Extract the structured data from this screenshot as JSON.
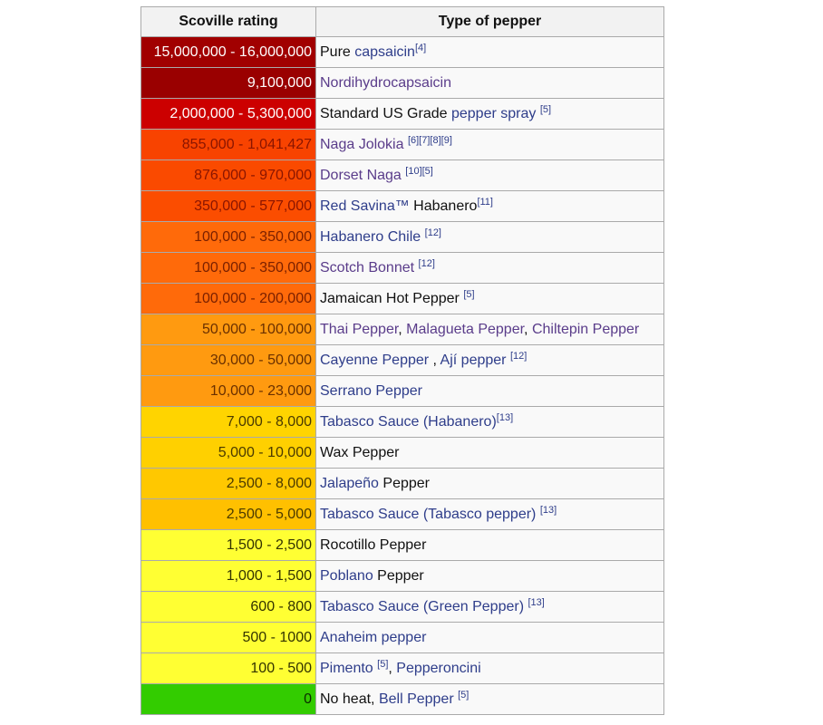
{
  "table": {
    "headers": [
      "Scoville rating",
      "Type of pepper"
    ],
    "rows": [
      {
        "rating": "15,000,000 - 16,000,000",
        "bg": "#a10000",
        "fg": "#ffffff",
        "type": [
          {
            "t": "Pure "
          },
          {
            "t": "capsaicin",
            "link": true
          },
          {
            "t": "[4]",
            "sup": true
          }
        ]
      },
      {
        "rating": "9,100,000",
        "bg": "#9a0000",
        "fg": "#ffffff",
        "type": [
          {
            "t": "Nordihydrocapsaicin",
            "link": true,
            "visited": true
          }
        ]
      },
      {
        "rating": "2,000,000 - 5,300,000",
        "bg": "#cc0000",
        "fg": "#ffffff",
        "type": [
          {
            "t": "Standard US Grade "
          },
          {
            "t": "pepper spray",
            "link": true
          },
          {
            "t": " "
          },
          {
            "t": "[5]",
            "sup": true
          }
        ]
      },
      {
        "rating": "855,000 - 1,041,427",
        "bg": "#f84300",
        "fg": "#8a1500",
        "type": [
          {
            "t": "Naga Jolokia",
            "link": true,
            "visited": true
          },
          {
            "t": " "
          },
          {
            "t": "[6][7][8][9]",
            "sup": true
          }
        ]
      },
      {
        "rating": "876,000 - 970,000",
        "bg": "#fa4a00",
        "fg": "#8a1500",
        "type": [
          {
            "t": "Dorset Naga",
            "link": true,
            "visited": true
          },
          {
            "t": " "
          },
          {
            "t": "[10][5]",
            "sup": true
          }
        ]
      },
      {
        "rating": "350,000 - 577,000",
        "bg": "#fb4d00",
        "fg": "#8a1500",
        "type": [
          {
            "t": "Red Savina™",
            "link": true
          },
          {
            "t": " Habanero"
          },
          {
            "t": "[11]",
            "sup": true
          }
        ]
      },
      {
        "rating": "100,000 - 350,000",
        "bg": "#ff6a0a",
        "fg": "#7a2000",
        "type": [
          {
            "t": "Habanero Chile",
            "link": true
          },
          {
            "t": " "
          },
          {
            "t": "[12]",
            "sup": true
          }
        ]
      },
      {
        "rating": "100,000 - 350,000",
        "bg": "#ff6a0a",
        "fg": "#7a2000",
        "type": [
          {
            "t": "Scotch Bonnet",
            "link": true,
            "visited": true
          },
          {
            "t": " "
          },
          {
            "t": "[12]",
            "sup": true
          }
        ]
      },
      {
        "rating": "100,000 - 200,000",
        "bg": "#ff6a0a",
        "fg": "#7a2000",
        "type": [
          {
            "t": "Jamaican Hot Pepper "
          },
          {
            "t": "[5]",
            "sup": true
          }
        ]
      },
      {
        "rating": "50,000 - 100,000",
        "bg": "#ff9a10",
        "fg": "#6a3000",
        "type": [
          {
            "t": "Thai Pepper",
            "link": true,
            "visited": true
          },
          {
            "t": ", "
          },
          {
            "t": "Malagueta Pepper",
            "link": true,
            "visited": true
          },
          {
            "t": ", "
          },
          {
            "t": "Chiltepin Pepper",
            "link": true,
            "visited": true
          }
        ]
      },
      {
        "rating": "30,000 - 50,000",
        "bg": "#ff9a10",
        "fg": "#6a3000",
        "type": [
          {
            "t": "Cayenne Pepper",
            "link": true
          },
          {
            "t": " , "
          },
          {
            "t": "Ají pepper",
            "link": true
          },
          {
            "t": " "
          },
          {
            "t": "[12]",
            "sup": true
          }
        ]
      },
      {
        "rating": "10,000 - 23,000",
        "bg": "#ff9a10",
        "fg": "#6a3000",
        "type": [
          {
            "t": "Serrano Pepper",
            "link": true
          }
        ]
      },
      {
        "rating": "7,000 - 8,000",
        "bg": "#ffd400",
        "fg": "#4a3a00",
        "type": [
          {
            "t": "Tabasco Sauce (Habanero)",
            "link": true
          },
          {
            "t": "[13]",
            "sup": true
          }
        ]
      },
      {
        "rating": "5,000 - 10,000",
        "bg": "#ffd000",
        "fg": "#4a3a00",
        "type": [
          {
            "t": "Wax Pepper"
          }
        ]
      },
      {
        "rating": "2,500 - 8,000",
        "bg": "#ffc800",
        "fg": "#4a3a00",
        "type": [
          {
            "t": "Jalapeño",
            "link": true
          },
          {
            "t": " Pepper"
          }
        ]
      },
      {
        "rating": "2,500 - 5,000",
        "bg": "#ffc000",
        "fg": "#4a3a00",
        "type": [
          {
            "t": "Tabasco Sauce (Tabasco pepper)",
            "link": true
          },
          {
            "t": " "
          },
          {
            "t": "[13]",
            "sup": true
          }
        ]
      },
      {
        "rating": "1,500 - 2,500",
        "bg": "#ffff33",
        "fg": "#333300",
        "type": [
          {
            "t": "Rocotillo Pepper"
          }
        ]
      },
      {
        "rating": "1,000 - 1,500",
        "bg": "#ffff33",
        "fg": "#333300",
        "type": [
          {
            "t": "Poblano",
            "link": true
          },
          {
            "t": " Pepper"
          }
        ]
      },
      {
        "rating": "600 - 800",
        "bg": "#ffff33",
        "fg": "#333300",
        "type": [
          {
            "t": "Tabasco Sauce (Green Pepper)",
            "link": true
          },
          {
            "t": " "
          },
          {
            "t": "[13]",
            "sup": true
          }
        ]
      },
      {
        "rating": "500 - 1000",
        "bg": "#ffff33",
        "fg": "#333300",
        "type": [
          {
            "t": "Anaheim pepper",
            "link": true
          }
        ]
      },
      {
        "rating": "100 - 500",
        "bg": "#ffff33",
        "fg": "#333300",
        "type": [
          {
            "t": "Pimento",
            "link": true
          },
          {
            "t": " "
          },
          {
            "t": "[5]",
            "sup": true
          },
          {
            "t": ", "
          },
          {
            "t": "Pepperoncini",
            "link": true
          }
        ]
      },
      {
        "rating": "0",
        "bg": "#33cc00",
        "fg": "#0a2a00",
        "type": [
          {
            "t": "No heat, "
          },
          {
            "t": "Bell Pepper",
            "link": true
          },
          {
            "t": " "
          },
          {
            "t": "[5]",
            "sup": true
          }
        ]
      }
    ]
  }
}
